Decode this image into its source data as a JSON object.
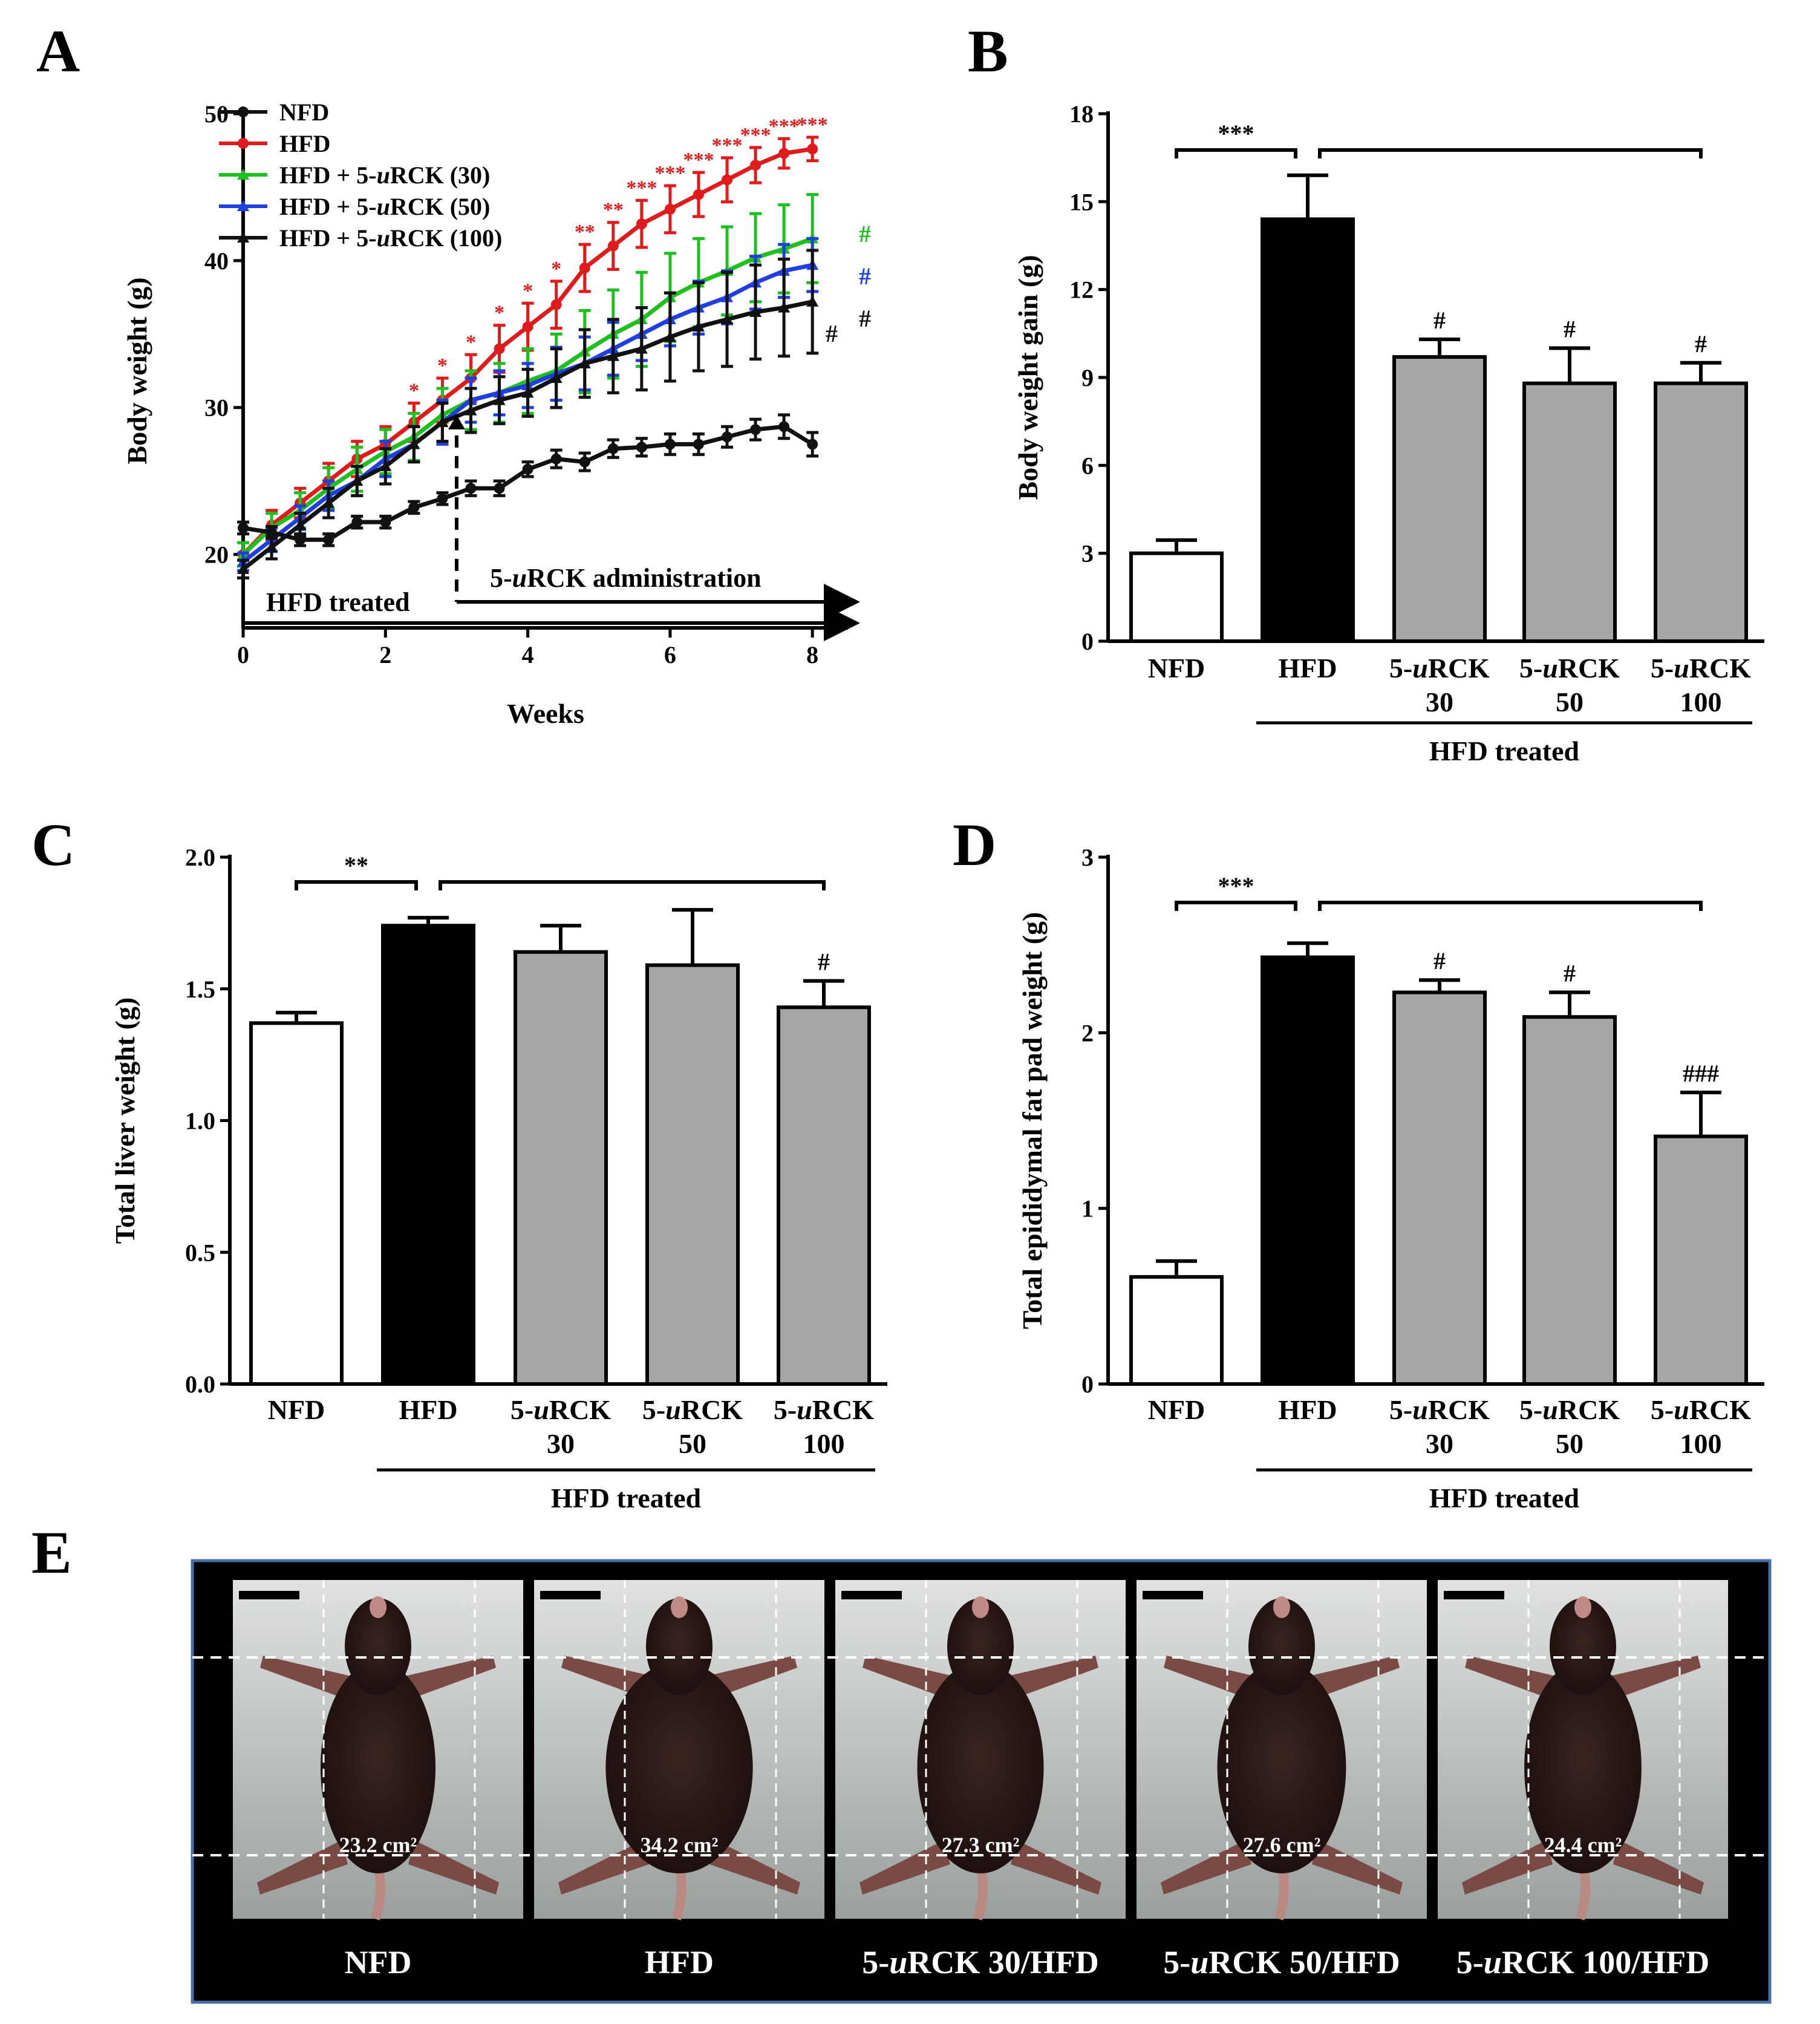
{
  "figure": {
    "panel_labels": [
      "A",
      "B",
      "C",
      "D",
      "E"
    ],
    "group_bracket_label": "HFD treated"
  },
  "chart_data": [
    {
      "panel": "A",
      "type": "line",
      "xlabel": "Weeks",
      "ylabel": "Body weight (g)",
      "xlim": [
        0,
        8.5
      ],
      "ylim": [
        15,
        50
      ],
      "xticks": [
        0,
        2,
        4,
        6,
        8
      ],
      "yticks": [
        20,
        30,
        40,
        50
      ],
      "legend_position": "top-left",
      "annotations": {
        "hfd_treated": "HFD treated",
        "administration": "5-uRCK administration",
        "administration_start_week": 3
      },
      "x": [
        0,
        0.4,
        0.8,
        1.2,
        1.6,
        2.0,
        2.4,
        2.8,
        3.2,
        3.6,
        4.0,
        4.4,
        4.8,
        5.2,
        5.6,
        6.0,
        6.4,
        6.8,
        7.2,
        7.6,
        8.0
      ],
      "series": [
        {
          "name": "NFD",
          "color": "#111111",
          "marker": "circle",
          "values": [
            21.8,
            21.5,
            21.0,
            21.0,
            22.2,
            22.2,
            23.2,
            23.8,
            24.5,
            24.5,
            25.8,
            26.5,
            26.3,
            27.2,
            27.3,
            27.5,
            27.5,
            28.0,
            28.5,
            28.7,
            27.5
          ],
          "errors": [
            0.4,
            0.4,
            0.4,
            0.4,
            0.4,
            0.4,
            0.4,
            0.4,
            0.5,
            0.5,
            0.5,
            0.6,
            0.6,
            0.6,
            0.6,
            0.7,
            0.7,
            0.7,
            0.7,
            0.8,
            0.8
          ]
        },
        {
          "name": "HFD",
          "color": "#e01b1b",
          "marker": "circle",
          "values": [
            20.0,
            22.0,
            23.5,
            25.0,
            26.5,
            27.5,
            29.0,
            30.5,
            32.0,
            34.0,
            35.5,
            37.0,
            39.5,
            41.0,
            42.5,
            43.5,
            44.5,
            45.5,
            46.5,
            47.3,
            47.6
          ],
          "errors": [
            0.8,
            1.0,
            1.0,
            1.2,
            1.2,
            1.2,
            1.3,
            1.5,
            1.6,
            1.6,
            1.6,
            1.6,
            1.6,
            1.6,
            1.6,
            1.6,
            1.5,
            1.5,
            1.2,
            1.0,
            0.8
          ],
          "significance": [
            "",
            "",
            "",
            "",
            "",
            "",
            "*",
            "*",
            "*",
            "*",
            "*",
            "*",
            "**",
            "**",
            "***",
            "***",
            "***",
            "***",
            "***",
            "***",
            "***"
          ]
        },
        {
          "name": "HFD + 5-uRCK (30)",
          "color": "#1fbf1f",
          "marker": "triangle",
          "values": [
            20.0,
            21.8,
            23.0,
            24.5,
            25.8,
            27.0,
            28.0,
            29.5,
            30.5,
            31.0,
            31.8,
            32.5,
            33.8,
            35.0,
            36.0,
            37.5,
            38.5,
            39.3,
            40.2,
            40.8,
            41.5
          ],
          "errors": [
            0.8,
            1.0,
            1.2,
            1.4,
            1.5,
            1.5,
            1.6,
            1.8,
            2.0,
            2.0,
            2.2,
            2.5,
            2.8,
            3.0,
            3.2,
            3.0,
            3.0,
            3.0,
            3.0,
            3.0,
            3.0
          ]
        },
        {
          "name": "HFD + 5-uRCK (50)",
          "color": "#1f3fe0",
          "marker": "triangle",
          "values": [
            19.5,
            21.0,
            22.5,
            24.0,
            25.0,
            26.5,
            27.5,
            29.0,
            30.5,
            31.0,
            31.5,
            32.3,
            33.0,
            34.0,
            35.0,
            36.0,
            36.8,
            37.5,
            38.5,
            39.3,
            39.7
          ],
          "errors": [
            0.6,
            0.8,
            0.8,
            1.0,
            1.0,
            1.2,
            1.2,
            1.5,
            1.5,
            1.5,
            1.5,
            1.8,
            1.8,
            1.8,
            1.8,
            1.8,
            1.8,
            1.8,
            1.8,
            1.8,
            1.8
          ]
        },
        {
          "name": "HFD + 5-uRCK (100)",
          "color": "#111111",
          "marker": "triangle",
          "values": [
            19.0,
            20.5,
            22.0,
            23.5,
            25.0,
            26.0,
            27.5,
            29.0,
            29.8,
            30.5,
            31.0,
            32.0,
            33.0,
            33.5,
            34.0,
            34.8,
            35.5,
            36.0,
            36.5,
            36.8,
            37.2
          ],
          "errors": [
            0.6,
            0.8,
            0.8,
            1.0,
            1.0,
            1.2,
            1.2,
            1.3,
            1.5,
            1.6,
            1.6,
            2.0,
            2.3,
            2.5,
            2.8,
            3.0,
            3.0,
            3.2,
            3.2,
            3.3,
            3.5
          ]
        }
      ],
      "end_markers": [
        {
          "label": "#",
          "color": "#1fbf1f"
        },
        {
          "label": "#",
          "color": "#1f3fe0"
        },
        {
          "label": "#",
          "color": "#111111"
        },
        {
          "label": "#",
          "color": "#111111"
        }
      ]
    },
    {
      "panel": "B",
      "type": "bar",
      "ylabel": "Body weight gain (g)",
      "ylim": [
        0,
        18
      ],
      "yticks": [
        0,
        3,
        6,
        9,
        12,
        15,
        18
      ],
      "categories": [
        "NFD",
        "HFD",
        "5-uRCK 30",
        "5-uRCK 50",
        "5-uRCK 100"
      ],
      "values": [
        3.0,
        14.4,
        9.7,
        8.8,
        8.8
      ],
      "errors": [
        0.45,
        1.5,
        0.6,
        1.2,
        0.7
      ],
      "bar_colors": [
        "#ffffff",
        "#000000",
        "#a6a6a6",
        "#a6a6a6",
        "#a6a6a6"
      ],
      "bar_significance": [
        "",
        "",
        "#",
        "#",
        "#"
      ],
      "bracket_significance": "***"
    },
    {
      "panel": "C",
      "type": "bar",
      "ylabel": "Total liver weight (g)",
      "ylim": [
        0,
        2.0
      ],
      "yticks": [
        "0.0",
        "0.5",
        "1.0",
        "1.5",
        "2.0"
      ],
      "categories": [
        "NFD",
        "HFD",
        "5-uRCK 30",
        "5-uRCK 50",
        "5-uRCK 100"
      ],
      "values": [
        1.37,
        1.74,
        1.64,
        1.59,
        1.43
      ],
      "errors": [
        0.04,
        0.03,
        0.1,
        0.21,
        0.1
      ],
      "bar_colors": [
        "#ffffff",
        "#000000",
        "#a6a6a6",
        "#a6a6a6",
        "#a6a6a6"
      ],
      "bar_significance": [
        "",
        "",
        "",
        "",
        "#"
      ],
      "bracket_significance": "**"
    },
    {
      "panel": "D",
      "type": "bar",
      "ylabel": "Total epididymal fat pad weight (g)",
      "ylim": [
        0,
        3
      ],
      "yticks": [
        0,
        1,
        2,
        3
      ],
      "categories": [
        "NFD",
        "HFD",
        "5-uRCK 30",
        "5-uRCK 50",
        "5-uRCK 100"
      ],
      "values": [
        0.61,
        2.43,
        2.23,
        2.09,
        1.41
      ],
      "errors": [
        0.09,
        0.08,
        0.07,
        0.14,
        0.25
      ],
      "bar_colors": [
        "#ffffff",
        "#000000",
        "#a6a6a6",
        "#a6a6a6",
        "#a6a6a6"
      ],
      "bar_significance": [
        "",
        "",
        "#",
        "#",
        "###"
      ],
      "bracket_significance": "***"
    }
  ],
  "panel_e": {
    "photos": [
      {
        "area": "23.2 cm²",
        "caption": "NFD"
      },
      {
        "area": "34.2 cm²",
        "caption": "HFD"
      },
      {
        "area": "27.3 cm²",
        "caption": "5-uRCK 30/HFD"
      },
      {
        "area": "27.6 cm²",
        "caption": "5-uRCK 50/HFD"
      },
      {
        "area": "24.4 cm²",
        "caption": "5-uRCK 100/HFD"
      }
    ]
  }
}
